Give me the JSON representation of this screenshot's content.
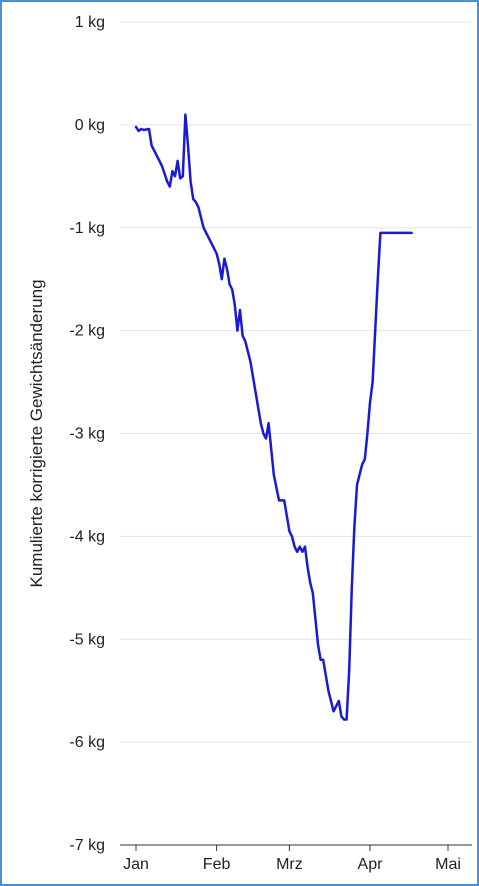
{
  "chart_data": {
    "type": "line",
    "ylabel": "Kumulierte korrigierte Gewichtsänderung",
    "y_unit": "kg",
    "ylim": [
      -7,
      1
    ],
    "y_ticks": [
      1,
      0,
      -1,
      -2,
      -3,
      -4,
      -5,
      -6,
      -7
    ],
    "y_tick_labels": [
      "1 kg",
      "0 kg",
      "-1 kg",
      "-2 kg",
      "-3 kg",
      "-4 kg",
      "-5 kg",
      "-6 kg",
      "-7 kg"
    ],
    "xlim": [
      "2019-01-01",
      "2019-05-01"
    ],
    "x_ticks": [
      "2019-01-01",
      "2019-02-01",
      "2019-03-01",
      "2019-04-01",
      "2019-05-01"
    ],
    "x_tick_labels": [
      "Jan",
      "Feb",
      "Mrz",
      "Apr",
      "Mai"
    ],
    "grid": "horizontal",
    "line_color": "#1a1ad6",
    "series": [
      {
        "x": [
          "2019-01-01",
          "2019-01-02",
          "2019-01-03",
          "2019-01-04",
          "2019-01-06",
          "2019-01-07",
          "2019-01-09",
          "2019-01-11",
          "2019-01-13",
          "2019-01-14",
          "2019-01-15",
          "2019-01-16",
          "2019-01-17",
          "2019-01-18",
          "2019-01-19",
          "2019-01-20",
          "2019-01-21",
          "2019-01-22",
          "2019-01-23",
          "2019-01-24",
          "2019-01-25",
          "2019-01-26",
          "2019-01-27",
          "2019-01-28",
          "2019-01-29",
          "2019-01-31",
          "2019-02-01",
          "2019-02-02",
          "2019-02-03",
          "2019-02-04",
          "2019-02-05",
          "2019-02-06",
          "2019-02-07",
          "2019-02-08",
          "2019-02-09",
          "2019-02-10",
          "2019-02-11",
          "2019-02-12",
          "2019-02-13",
          "2019-02-14",
          "2019-02-15",
          "2019-02-17",
          "2019-02-18",
          "2019-02-19",
          "2019-02-20",
          "2019-02-21",
          "2019-02-23",
          "2019-02-25",
          "2019-02-27",
          "2019-02-28",
          "2019-03-01",
          "2019-03-02",
          "2019-03-03",
          "2019-03-04",
          "2019-03-05",
          "2019-03-06",
          "2019-03-07",
          "2019-03-08",
          "2019-03-09",
          "2019-03-10",
          "2019-03-11",
          "2019-03-12",
          "2019-03-13",
          "2019-03-14",
          "2019-03-15",
          "2019-03-16",
          "2019-03-17",
          "2019-03-18",
          "2019-03-19",
          "2019-03-20",
          "2019-03-21",
          "2019-03-22",
          "2019-03-23",
          "2019-03-24",
          "2019-03-25",
          "2019-03-26",
          "2019-03-27",
          "2019-03-28",
          "2019-03-29",
          "2019-03-30",
          "2019-03-31",
          "2019-04-01",
          "2019-04-02",
          "2019-04-03",
          "2019-04-04",
          "2019-04-05",
          "2019-04-06",
          "2019-04-07",
          "2019-04-08",
          "2019-04-09",
          "2019-04-10",
          "2019-04-11",
          "2019-04-12",
          "2019-04-14",
          "2019-04-15",
          "2019-04-17"
        ],
        "y": [
          -0.02,
          -0.06,
          -0.04,
          -0.05,
          -0.04,
          -0.2,
          -0.3,
          -0.4,
          -0.55,
          -0.6,
          -0.45,
          -0.5,
          -0.35,
          -0.52,
          -0.5,
          0.1,
          -0.2,
          -0.55,
          -0.72,
          -0.75,
          -0.8,
          -0.9,
          -1.0,
          -1.05,
          -1.1,
          -1.2,
          -1.25,
          -1.35,
          -1.5,
          -1.3,
          -1.4,
          -1.55,
          -1.6,
          -1.75,
          -2.0,
          -1.8,
          -2.05,
          -2.1,
          -2.2,
          -2.3,
          -2.45,
          -2.75,
          -2.9,
          -3.0,
          -3.05,
          -2.9,
          -3.4,
          -3.65,
          -3.65,
          -3.8,
          -3.95,
          -4.0,
          -4.1,
          -4.15,
          -4.1,
          -4.15,
          -4.1,
          -4.3,
          -4.45,
          -4.55,
          -4.8,
          -5.05,
          -5.2,
          -5.2,
          -5.35,
          -5.5,
          -5.6,
          -5.7,
          -5.65,
          -5.6,
          -5.75,
          -5.78,
          -5.78,
          -5.3,
          -4.5,
          -3.9,
          -3.5,
          -3.4,
          -3.3,
          -3.25,
          -3.0,
          -2.7,
          -2.5,
          -2.0,
          -1.5,
          -1.05,
          -1.05,
          -1.05,
          -1.05,
          -1.05,
          -1.05,
          -1.05,
          -1.05,
          -1.05,
          -1.05,
          -1.05
        ]
      }
    ]
  }
}
